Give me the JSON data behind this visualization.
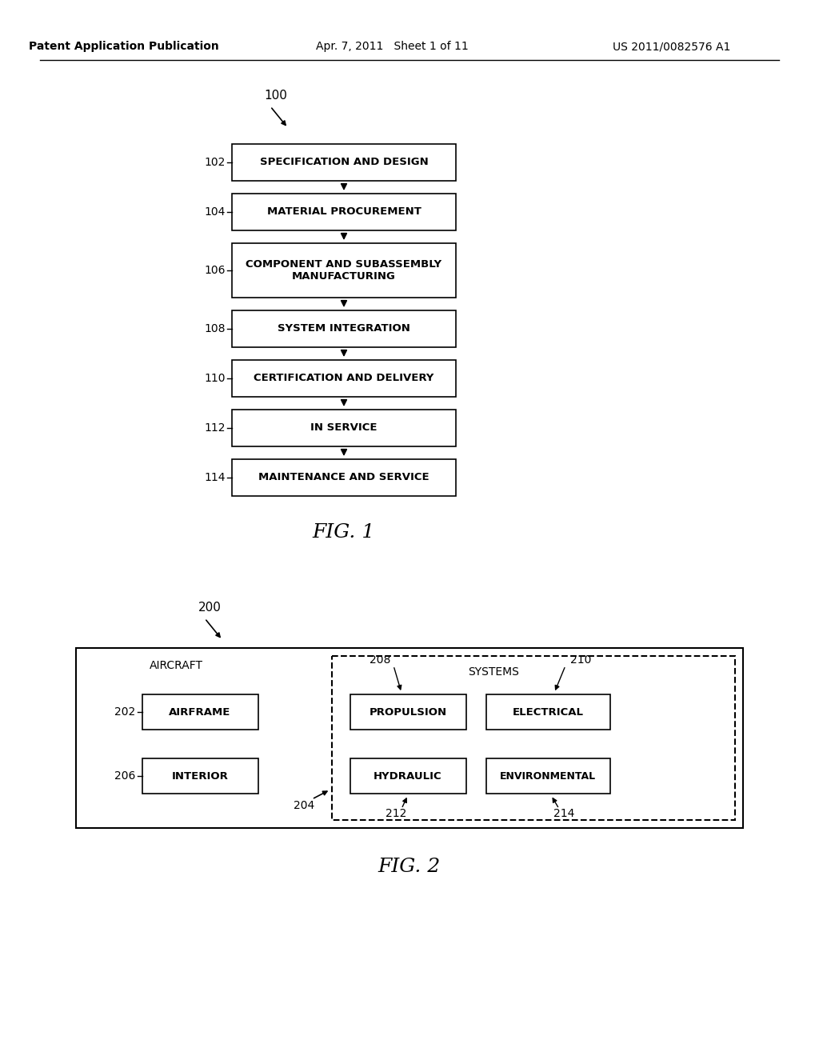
{
  "bg_color": "#ffffff",
  "header_left": "Patent Application Publication",
  "header_center": "Apr. 7, 2011   Sheet 1 of 11",
  "header_right": "US 2011/0082576 A1",
  "fig1": {
    "ref_label": "100",
    "caption": "FIG. 1",
    "boxes": [
      {
        "label": "102",
        "text": "SPECIFICATION AND DESIGN",
        "two_line": false
      },
      {
        "label": "104",
        "text": "MATERIAL PROCUREMENT",
        "two_line": false
      },
      {
        "label": "106",
        "text": "COMPONENT AND SUBASSEMBLY\nMANUFACTURING",
        "two_line": true
      },
      {
        "label": "108",
        "text": "SYSTEM INTEGRATION",
        "two_line": false
      },
      {
        "label": "110",
        "text": "CERTIFICATION AND DELIVERY",
        "two_line": false
      },
      {
        "label": "112",
        "text": "IN SERVICE",
        "two_line": false
      },
      {
        "label": "114",
        "text": "MAINTENANCE AND SERVICE",
        "two_line": false
      }
    ]
  },
  "fig2": {
    "ref_label": "200",
    "caption": "FIG. 2",
    "outer_label": "AIRCRAFT",
    "dashed_label": "SYSTEMS",
    "connector_label": "204",
    "left_boxes": [
      {
        "label": "202",
        "text": "AIRFRAME"
      },
      {
        "label": "206",
        "text": "INTERIOR"
      }
    ],
    "right_boxes": [
      {
        "label": "208",
        "text": "PROPULSION",
        "label2": "212",
        "text2": "HYDRAULIC"
      },
      {
        "label": "210",
        "text": "ELECTRICAL",
        "label2": "214",
        "text2": "ENVIRONMENTAL"
      }
    ]
  }
}
